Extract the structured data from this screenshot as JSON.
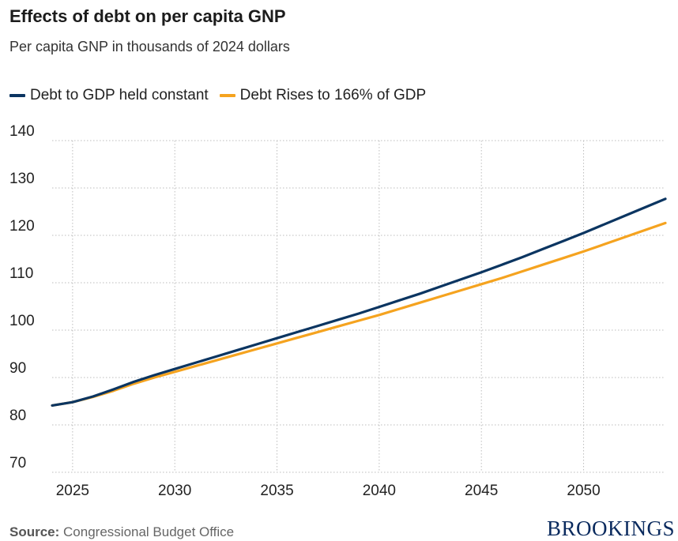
{
  "header": {
    "title": "Effects of debt on per capita GNP",
    "subtitle": "Per capita GNP in thousands of 2024 dollars"
  },
  "footer": {
    "source_label": "Source:",
    "source_text": "Congressional Budget Office",
    "brand": "BROOKINGS"
  },
  "colors": {
    "constant": "#0b3561",
    "rises": "#f5a31f",
    "grid": "#bdbdbd"
  },
  "chart_data": {
    "type": "line",
    "title": "Effects of debt on per capita GNP",
    "subtitle": "Per capita GNP in thousands of 2024 dollars",
    "xlabel": "",
    "ylabel": "",
    "xlim": [
      2024,
      2054
    ],
    "ylim": [
      70,
      140
    ],
    "y_ticks": [
      70,
      80,
      90,
      100,
      110,
      120,
      130,
      140
    ],
    "x_ticks": [
      2025,
      2030,
      2035,
      2040,
      2045,
      2050
    ],
    "grid": true,
    "legend_position": "top-left",
    "series": [
      {
        "name": "Debt to GDP held constant",
        "color": "#0b3561",
        "x": [
          2024,
          2025,
          2026,
          2027,
          2028,
          2029,
          2030,
          2031,
          2032,
          2033,
          2034,
          2035,
          2036,
          2037,
          2038,
          2039,
          2040,
          2041,
          2042,
          2043,
          2044,
          2045,
          2046,
          2047,
          2048,
          2049,
          2050,
          2051,
          2052,
          2053,
          2054
        ],
        "y": [
          84.1,
          84.8,
          86.0,
          87.5,
          89.1,
          90.5,
          91.8,
          93.1,
          94.4,
          95.7,
          97.0,
          98.3,
          99.6,
          100.9,
          102.2,
          103.5,
          104.9,
          106.3,
          107.7,
          109.2,
          110.7,
          112.2,
          113.8,
          115.4,
          117.1,
          118.8,
          120.5,
          122.3,
          124.1,
          125.9,
          127.7
        ]
      },
      {
        "name": "Debt Rises to 166% of GDP",
        "color": "#f5a31f",
        "x": [
          2024,
          2025,
          2026,
          2027,
          2028,
          2029,
          2030,
          2031,
          2032,
          2033,
          2034,
          2035,
          2036,
          2037,
          2038,
          2039,
          2040,
          2041,
          2042,
          2043,
          2044,
          2045,
          2046,
          2047,
          2048,
          2049,
          2050,
          2051,
          2052,
          2053,
          2054
        ],
        "y": [
          84.1,
          84.8,
          85.9,
          87.2,
          88.7,
          90.0,
          91.2,
          92.4,
          93.6,
          94.8,
          96.0,
          97.2,
          98.4,
          99.6,
          100.8,
          102.0,
          103.2,
          104.5,
          105.8,
          107.1,
          108.4,
          109.7,
          111.0,
          112.4,
          113.8,
          115.2,
          116.6,
          118.1,
          119.6,
          121.1,
          122.6
        ]
      }
    ]
  }
}
